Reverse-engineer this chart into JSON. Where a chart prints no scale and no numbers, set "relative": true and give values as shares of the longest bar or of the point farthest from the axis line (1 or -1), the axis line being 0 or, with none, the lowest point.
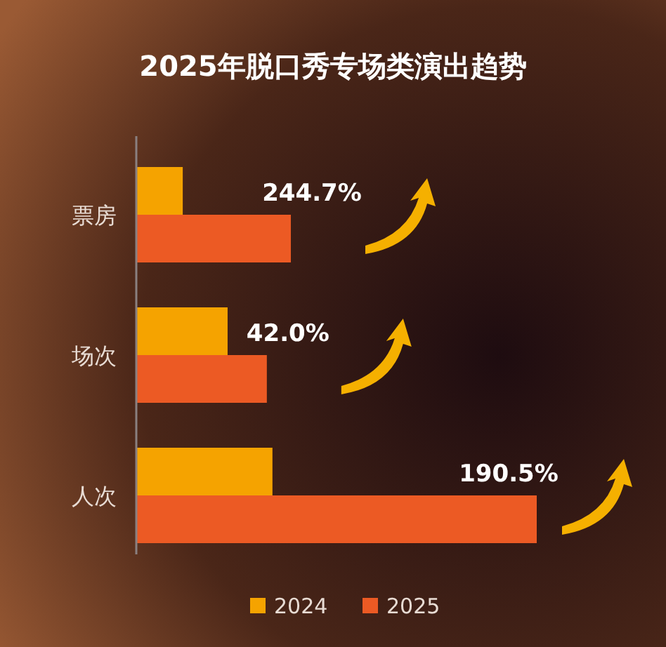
{
  "chart_data": {
    "type": "bar",
    "orientation": "horizontal",
    "relative": true,
    "title": "2025年脱口秀专场类演出趋势",
    "categories": [
      "票房",
      "场次",
      "人次"
    ],
    "series": [
      {
        "name": "2024",
        "color": "#f5a300",
        "values": [
          0.116,
          0.228,
          0.34
        ]
      },
      {
        "name": "2025",
        "color": "#ec5a24",
        "values": [
          0.386,
          0.326,
          1.0
        ]
      }
    ],
    "annotations": [
      "244.7%",
      "42.0%",
      "190.5%"
    ],
    "legend": "bottom"
  }
}
